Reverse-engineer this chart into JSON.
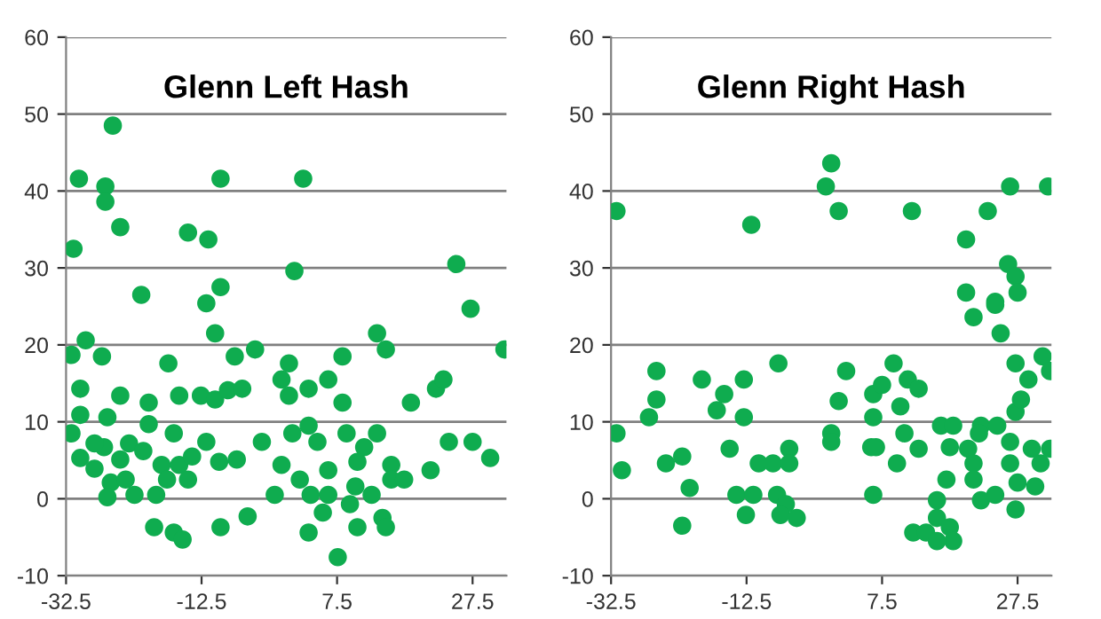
{
  "chart_data": [
    {
      "type": "scatter",
      "title": "Glenn Left Hash",
      "color": "#0fac4f",
      "marker": "circle",
      "grid": "y",
      "legend": false,
      "xlim": [
        -32.5,
        32.5
      ],
      "xticks": [
        -32.5,
        -12.5,
        7.5,
        27.5
      ],
      "ylim": [
        -10,
        60
      ],
      "yticks": [
        -10,
        0,
        10,
        20,
        30,
        40,
        50,
        60
      ],
      "x": [
        -25.6,
        -30.6,
        -26.7,
        -26.7,
        -24.5,
        -31.4,
        -14.5,
        -11.5,
        -9.7,
        2.5,
        1.2,
        25.1,
        -21.4,
        -11.8,
        -9.7,
        27.2,
        -29.6,
        -31.7,
        -27.2,
        -17.4,
        -10.5,
        -7.6,
        -4.6,
        13.4,
        14.7,
        8.3,
        0.4,
        32.2,
        -0.7,
        0.4,
        3.3,
        6.2,
        8.3,
        18.4,
        22.1,
        23.2,
        -30.4,
        -24.5,
        -20.3,
        -15.8,
        -12.6,
        -10.5,
        -8.6,
        -6.5,
        -30.4,
        -26.4,
        -20.3,
        -31.7,
        -16.6,
        -11.8,
        -3.6,
        0.9,
        3.3,
        4.6,
        8.9,
        13.4,
        11.5,
        24.0,
        27.5,
        30.1,
        -30.4,
        -26.9,
        -23.2,
        -21.1,
        -28.3,
        -24.5,
        -18.4,
        -15.8,
        -13.9,
        -9.9,
        -7.3,
        -0.7,
        6.2,
        10.5,
        15.5,
        21.3,
        -25.9,
        -23.7,
        -17.6,
        -14.5,
        2.0,
        10.2,
        15.5,
        17.4,
        -26.4,
        -22.4,
        -19.2,
        -1.7,
        3.6,
        6.2,
        9.4,
        12.6,
        5.4,
        14.2,
        14.7,
        10.5,
        -19.5,
        -16.6,
        -15.3,
        -9.7,
        -5.7,
        3.3,
        7.6,
        -28.3
      ],
      "values": [
        48.5,
        41.6,
        40.6,
        38.6,
        35.3,
        32.5,
        34.6,
        33.7,
        41.6,
        41.6,
        29.6,
        30.5,
        26.5,
        25.4,
        27.5,
        24.7,
        20.6,
        18.7,
        18.5,
        17.6,
        21.5,
        18.5,
        19.4,
        21.5,
        19.4,
        18.5,
        17.6,
        19.4,
        15.5,
        13.4,
        14.3,
        15.5,
        12.5,
        12.5,
        14.3,
        15.5,
        14.3,
        13.4,
        12.5,
        13.4,
        13.4,
        12.9,
        14.1,
        14.3,
        10.9,
        10.6,
        9.7,
        8.5,
        8.5,
        7.4,
        7.4,
        8.5,
        9.5,
        7.4,
        8.5,
        8.5,
        6.7,
        7.4,
        7.4,
        5.3,
        5.3,
        6.7,
        7.2,
        6.2,
        3.9,
        5.1,
        4.4,
        4.4,
        5.5,
        4.8,
        5.1,
        4.4,
        3.7,
        4.8,
        4.4,
        3.7,
        2.1,
        2.5,
        2.5,
        2.5,
        2.5,
        1.6,
        2.5,
        2.5,
        0.2,
        0.5,
        0.5,
        0.5,
        0.5,
        0.5,
        -0.7,
        0.5,
        -1.8,
        -2.5,
        -3.7,
        -3.7,
        -3.7,
        -4.4,
        -5.3,
        -3.7,
        -2.3,
        -4.4,
        -7.6,
        7.2
      ]
    },
    {
      "type": "scatter",
      "title": "Glenn Right Hash",
      "color": "#0fac4f",
      "marker": "circle",
      "grid": "y",
      "legend": false,
      "xlim": [
        -32.5,
        32.5
      ],
      "xticks": [
        -32.5,
        -12.5,
        7.5,
        27.5
      ],
      "ylim": [
        -10,
        60
      ],
      "yticks": [
        -10,
        0,
        10,
        20,
        30,
        40,
        50,
        60
      ],
      "x": [
        -31.7,
        -11.8,
        0.0,
        -0.8,
        1.1,
        11.9,
        23.1,
        26.4,
        32.0,
        19.9,
        26.1,
        27.2,
        27.5,
        19.9,
        24.2,
        24.2,
        21.0,
        25.0,
        -31.7,
        -30.9,
        -25.8,
        -25.8,
        -26.9,
        -24.4,
        -22.0,
        -20.9,
        -22.0,
        -19.1,
        -15.8,
        -16.9,
        -12.9,
        -12.9,
        -15.0,
        -10.7,
        -8.6,
        -6.2,
        -6.2,
        -7.8,
        -14.0,
        -11.5,
        -8.0,
        -6.7,
        -12.6,
        -7.5,
        -5.1,
        0.0,
        0.0,
        1.1,
        2.2,
        6.2,
        6.2,
        7.5,
        9.2,
        5.9,
        6.6,
        9.7,
        6.2,
        10.2,
        10.8,
        11.3,
        12.9,
        12.9,
        12.1,
        14.0,
        15.6,
        15.6,
        17.5,
        18.0,
        15.6,
        17.0,
        16.2,
        18.0,
        17.5,
        20.2,
        21.0,
        21.0,
        22.1,
        24.2,
        22.1,
        24.5,
        26.4,
        26.4,
        27.5,
        30.1,
        27.2,
        29.6,
        32.3,
        30.9,
        27.2,
        28.0,
        29.1,
        27.2,
        31.2,
        32.3,
        21.8
      ],
      "values": [
        37.4,
        35.6,
        43.6,
        40.6,
        37.4,
        37.4,
        37.4,
        40.6,
        40.6,
        33.7,
        30.5,
        28.9,
        26.8,
        26.8,
        25.6,
        25.2,
        23.6,
        21.5,
        8.5,
        3.7,
        16.6,
        12.9,
        10.6,
        4.6,
        5.5,
        1.4,
        -3.5,
        15.5,
        13.6,
        11.5,
        15.5,
        10.6,
        6.5,
        4.6,
        4.6,
        6.5,
        4.6,
        17.6,
        0.5,
        0.5,
        0.5,
        -0.7,
        -2.1,
        -2.1,
        -2.5,
        8.5,
        7.4,
        12.7,
        16.6,
        10.6,
        13.6,
        14.8,
        17.6,
        6.7,
        6.7,
        4.6,
        0.5,
        12.0,
        8.5,
        15.5,
        14.3,
        6.5,
        -4.4,
        -4.4,
        -2.5,
        -0.2,
        -3.7,
        -5.5,
        -5.5,
        2.5,
        9.5,
        9.5,
        6.7,
        6.5,
        4.6,
        2.5,
        -0.2,
        0.5,
        9.5,
        9.5,
        7.4,
        4.6,
        2.1,
        1.6,
        -1.4,
        6.5,
        6.5,
        4.6,
        11.3,
        12.9,
        15.5,
        17.6,
        18.5,
        16.6,
        8.5
      ]
    }
  ]
}
